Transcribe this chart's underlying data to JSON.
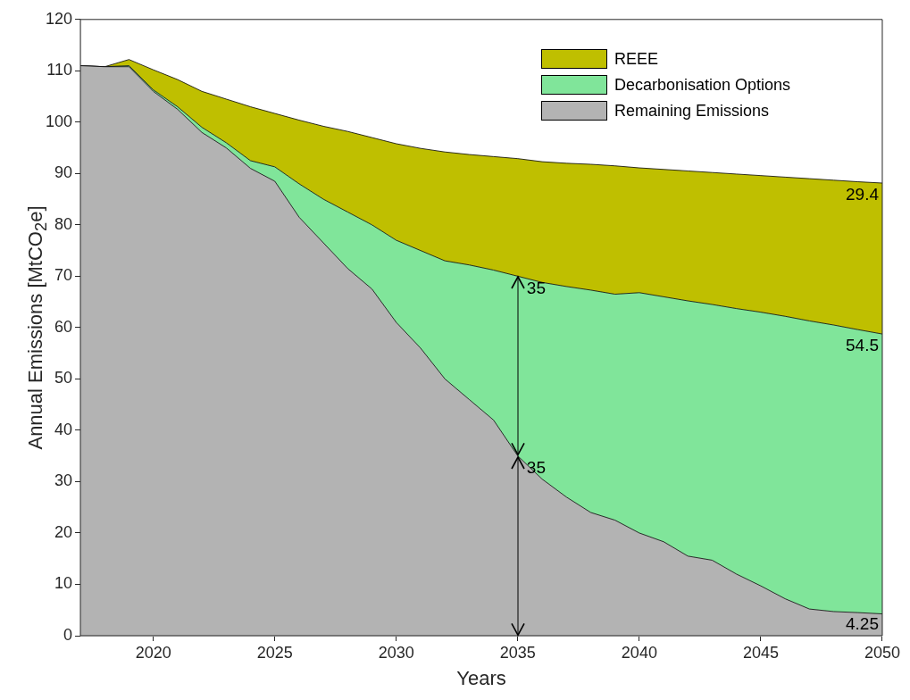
{
  "chart_data": {
    "type": "area",
    "stacked": true,
    "xlabel": "Years",
    "ylabel": "Annual Emissions [MtCO$_{2}$e]",
    "x": [
      2017,
      2018,
      2019,
      2020,
      2021,
      2022,
      2023,
      2024,
      2025,
      2026,
      2027,
      2028,
      2029,
      2030,
      2031,
      2032,
      2033,
      2034,
      2035,
      2036,
      2037,
      2038,
      2039,
      2040,
      2041,
      2042,
      2043,
      2044,
      2045,
      2046,
      2047,
      2048,
      2049,
      2050
    ],
    "series": [
      {
        "name": "Remaining Emissions",
        "color": "#b3b3b3",
        "values": [
          111,
          110.8,
          110.8,
          106,
          102.5,
          98,
          95,
          91,
          88.5,
          81.5,
          76.5,
          71.5,
          67.5,
          61,
          56,
          50,
          46,
          42,
          35,
          30.5,
          27,
          24,
          22.5,
          20,
          18.3,
          15.5,
          14.7,
          12,
          9.7,
          7.2,
          5.2,
          4.7,
          4.5,
          4.25
        ],
        "value_labels": [
          null,
          null,
          null,
          null,
          null,
          null,
          null,
          null,
          null,
          null,
          null,
          null,
          null,
          null,
          null,
          null,
          null,
          null,
          "35",
          null,
          null,
          null,
          null,
          null,
          null,
          null,
          null,
          null,
          null,
          null,
          null,
          null,
          null,
          "4.25"
        ]
      },
      {
        "name": "Decarbonisation Options",
        "color": "#80e59a",
        "values": [
          0,
          0,
          0.2,
          0.3,
          0.5,
          1,
          1,
          1.5,
          2.8,
          6.5,
          8.5,
          11,
          12.5,
          16,
          19,
          23,
          26.2,
          29.2,
          35,
          38.3,
          41,
          43.3,
          44,
          46.8,
          47.7,
          49.7,
          49.8,
          51.7,
          53.3,
          55,
          56.1,
          55.8,
          55.1,
          54.5
        ],
        "value_labels": [
          null,
          null,
          null,
          null,
          null,
          null,
          null,
          null,
          null,
          null,
          null,
          null,
          null,
          null,
          null,
          null,
          null,
          null,
          "35",
          null,
          null,
          null,
          null,
          null,
          null,
          null,
          null,
          null,
          null,
          null,
          null,
          null,
          null,
          "54.5"
        ]
      },
      {
        "name": "REEE",
        "color": "#bfbf00",
        "values": [
          0,
          0,
          1.2,
          3.9,
          5.3,
          7,
          8.5,
          10.5,
          10.4,
          12.4,
          14.2,
          15.7,
          17,
          18.8,
          19.9,
          21.2,
          21.5,
          22.1,
          22.9,
          23.5,
          24,
          24.5,
          25,
          24.3,
          24.8,
          25.3,
          25.7,
          26.2,
          26.6,
          27.1,
          27.7,
          28.2,
          28.8,
          29.4
        ],
        "value_labels": [
          null,
          null,
          null,
          null,
          null,
          null,
          null,
          null,
          null,
          null,
          null,
          null,
          null,
          null,
          null,
          null,
          null,
          null,
          null,
          null,
          null,
          null,
          null,
          null,
          null,
          null,
          null,
          null,
          null,
          null,
          null,
          null,
          null,
          "29.4"
        ]
      }
    ],
    "xlim": [
      2017,
      2050
    ],
    "xticks": [
      2020,
      2025,
      2030,
      2035,
      2040,
      2045,
      2050
    ],
    "ylim": [
      0,
      120
    ],
    "yticks": [
      0,
      10,
      20,
      30,
      40,
      50,
      60,
      70,
      80,
      90,
      100,
      110,
      120
    ],
    "grid": false,
    "legend": "top right"
  }
}
